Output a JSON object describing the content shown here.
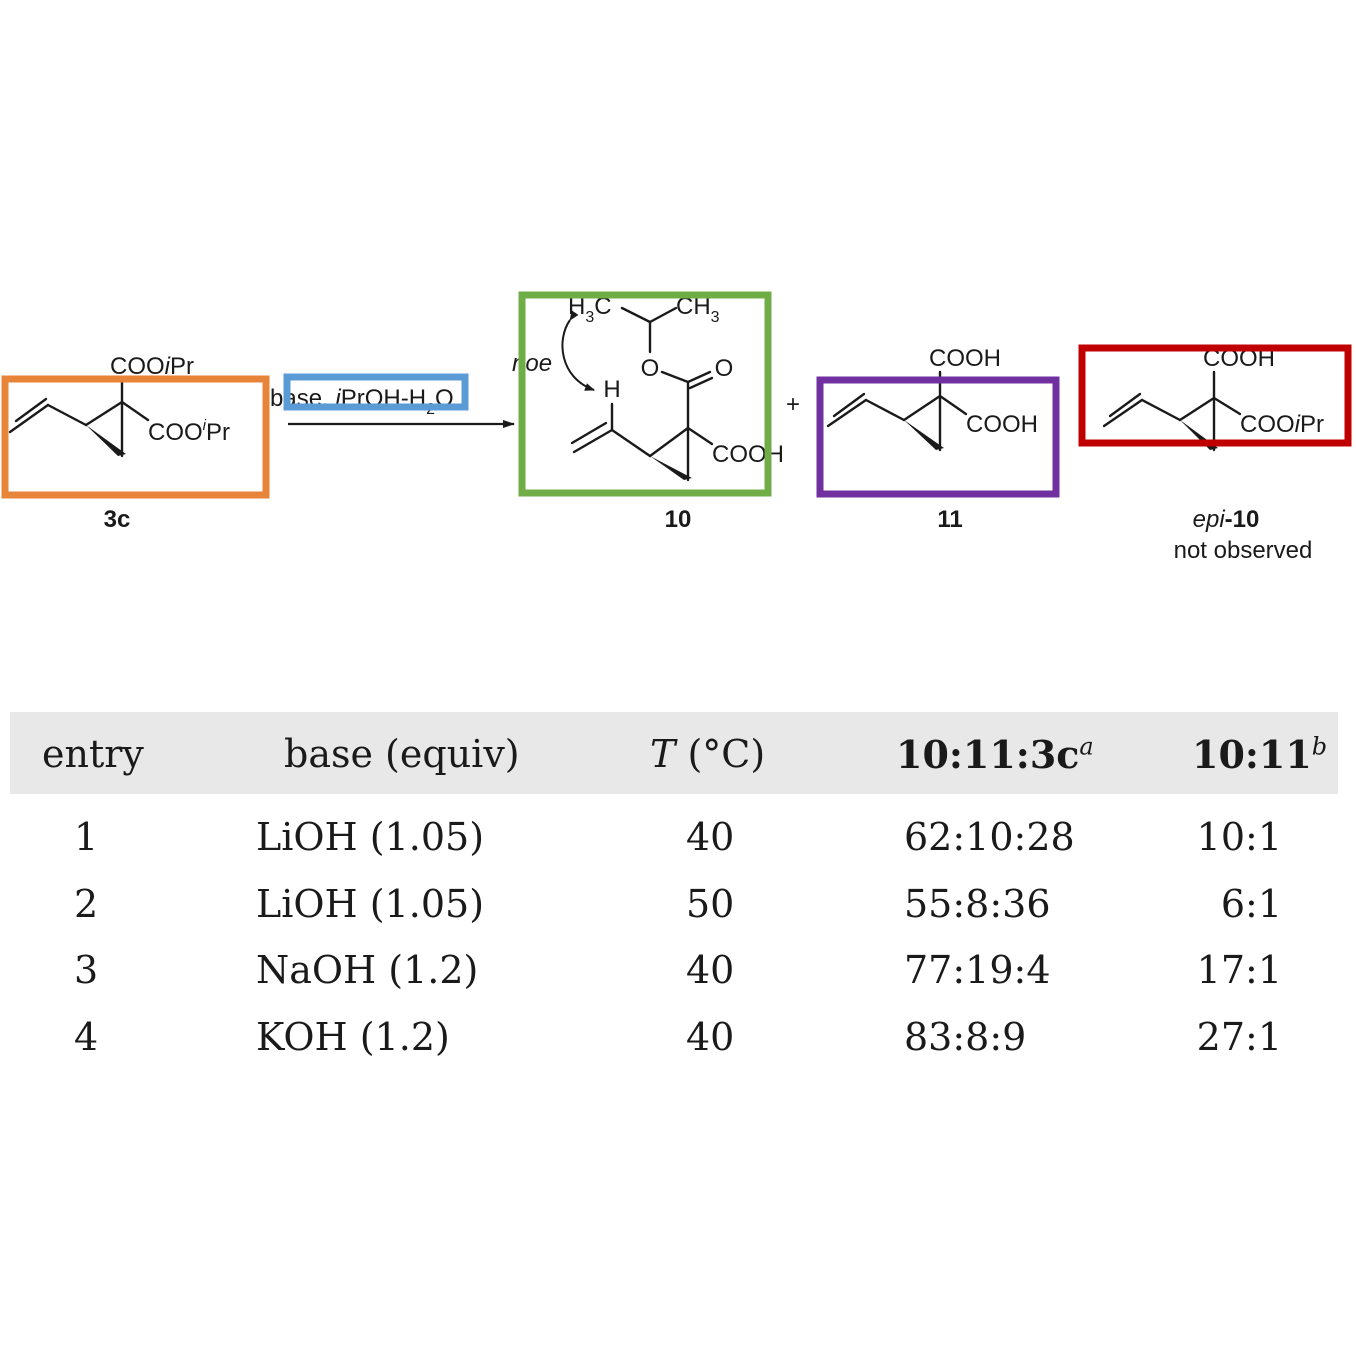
{
  "scheme": {
    "reactant": {
      "label": "3c",
      "substituent_top": "COOiPr",
      "substituent_right": "COOiPr"
    },
    "conditions": "base, iPrOH-H2O",
    "product_main": {
      "label": "10",
      "top_left": "H3C",
      "top_right": "CH3",
      "carbonyl_o": "O",
      "ester_o": "O",
      "h": "H",
      "acid": "COOH",
      "noe": "noe"
    },
    "plus": "+",
    "product_diacid": {
      "label": "11",
      "top": "COOH",
      "right": "COOH"
    },
    "product_epi": {
      "label_prefix": "epi",
      "label_suffix": "-10",
      "top": "COOH",
      "right": "COOiPr",
      "note": "not observed"
    }
  },
  "highlight_colors": {
    "orange": "#e8833a",
    "blue": "#5b9bd5",
    "green": "#70ad47",
    "purple": "#7030a0",
    "red": "#c00000"
  },
  "table": {
    "headers": {
      "entry": "entry",
      "base": "base (equiv)",
      "temp_symbol": "T",
      "temp_unit": "(°C)",
      "ratio1": "10:11:3c",
      "ratio1_note": "a",
      "ratio2": "10:11",
      "ratio2_note": "b"
    },
    "rows": [
      {
        "entry": "1",
        "base": "LiOH (1.05)",
        "temp": "40",
        "ratio1": "62:10:28",
        "ratio2": "10:1"
      },
      {
        "entry": "2",
        "base": "LiOH (1.05)",
        "temp": "50",
        "ratio1": "55:8:36",
        "ratio2": "6:1"
      },
      {
        "entry": "3",
        "base": "NaOH (1.2)",
        "temp": "40",
        "ratio1": "77:19:4",
        "ratio2": "17:1"
      },
      {
        "entry": "4",
        "base": "KOH (1.2)",
        "temp": "40",
        "ratio1": "83:8:9",
        "ratio2": "27:1"
      }
    ]
  }
}
